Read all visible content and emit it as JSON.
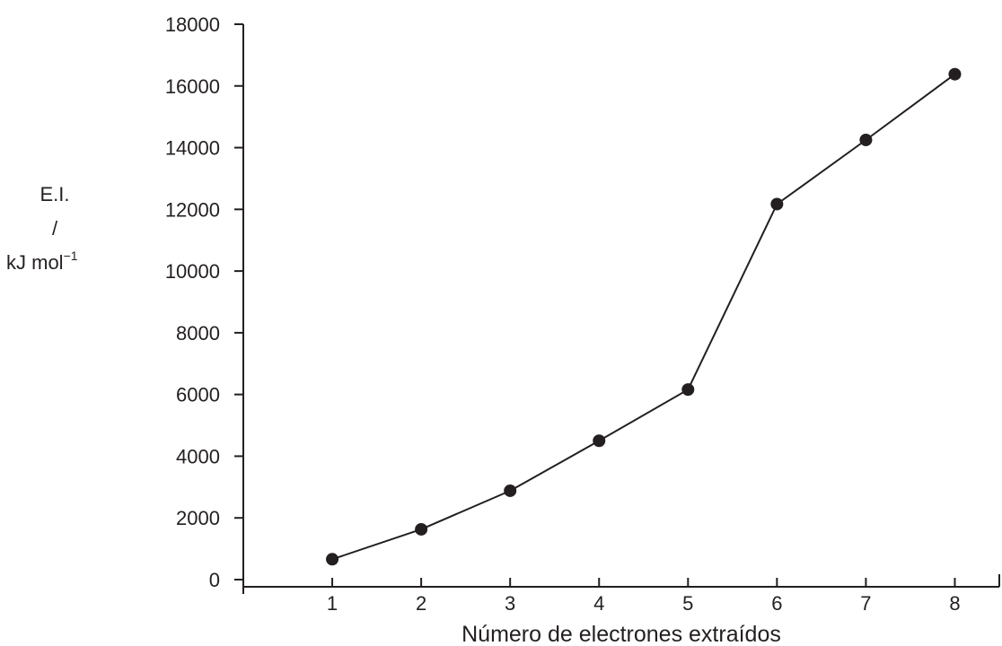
{
  "chart_data": {
    "type": "line",
    "xlabel": "Número de electrones extraídos",
    "ylabel": {
      "line1": "E.I.",
      "line2": "/",
      "line3_base": "kJ mol",
      "line3_sup": "−1"
    },
    "x": [
      1,
      2,
      3,
      4,
      5,
      6,
      7,
      8
    ],
    "series": [
      {
        "values": [
          660,
          1630,
          2880,
          4500,
          6160,
          12170,
          14250,
          16380
        ]
      }
    ],
    "xlim": [
      0,
      8.5
    ],
    "ylim": [
      0,
      18000
    ],
    "xticks": [
      "1",
      "2",
      "3",
      "4",
      "5",
      "6",
      "7",
      "8"
    ],
    "yticks": [
      "0",
      "2000",
      "4000",
      "6000",
      "8000",
      "10000",
      "12000",
      "14000",
      "16000",
      "18000"
    ],
    "grid": false,
    "legend": "none",
    "colors": {
      "line": "#231f20",
      "marker": "#231f20"
    }
  }
}
